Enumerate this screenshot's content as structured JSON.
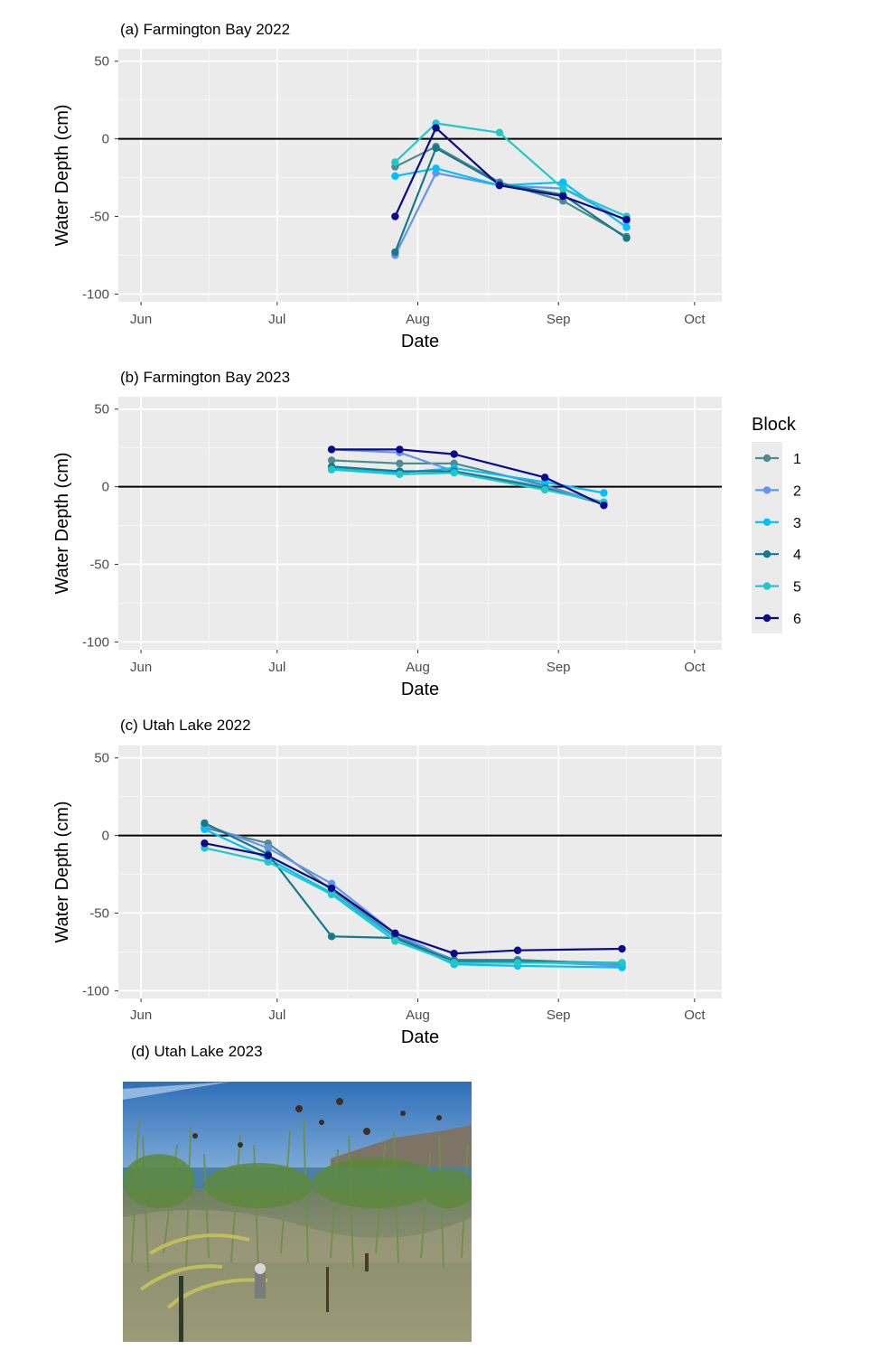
{
  "figure": {
    "legend": {
      "title": "Block",
      "entries": [
        {
          "label": "1",
          "color": "#4f8c8f"
        },
        {
          "label": "2",
          "color": "#6495ed"
        },
        {
          "label": "3",
          "color": "#00bfff"
        },
        {
          "label": "4",
          "color": "#17798c"
        },
        {
          "label": "5",
          "color": "#20c9c9"
        },
        {
          "label": "6",
          "color": "#0a0a8c"
        }
      ]
    },
    "photo_panel": {
      "title": "(d)  Utah Lake 2023",
      "image_alt": "photo-of-reeds-in-shallow-lake-water"
    }
  },
  "chart_data": [
    {
      "type": "line",
      "panel": "a",
      "title": "(a) Farmington Bay 2022",
      "xlabel": "Date",
      "ylabel": "Water Depth (cm)",
      "x_ticks": [
        "2022-06-01",
        "2022-07-01",
        "2022-08-01",
        "2022-09-01",
        "2022-10-01"
      ],
      "x_tick_labels": [
        "Jun",
        "Jul",
        "Aug",
        "Sep",
        "Oct"
      ],
      "xlim": [
        "2022-05-27",
        "2022-10-07"
      ],
      "ylim": [
        -105,
        58
      ],
      "y_ticks": [
        50,
        0,
        -50,
        -100
      ],
      "y_tick_labels": [
        "50",
        "0",
        "-50",
        "-100"
      ],
      "reference_line_y": 0,
      "grid": true,
      "series": [
        {
          "name": "1",
          "x": [
            "2022-07-27",
            "2022-08-05",
            "2022-08-19",
            "2022-09-02",
            "2022-09-16"
          ],
          "values": [
            -18,
            -5,
            -28,
            -40,
            -63
          ]
        },
        {
          "name": "2",
          "x": [
            "2022-07-27",
            "2022-08-05",
            "2022-08-19",
            "2022-09-02",
            "2022-09-16"
          ],
          "values": [
            -75,
            -22,
            -30,
            -32,
            -53
          ]
        },
        {
          "name": "3",
          "x": [
            "2022-07-27",
            "2022-08-05",
            "2022-08-19",
            "2022-09-02",
            "2022-09-16"
          ],
          "values": [
            -24,
            -19,
            -30,
            -28,
            -57
          ]
        },
        {
          "name": "4",
          "x": [
            "2022-07-27",
            "2022-08-05",
            "2022-08-19",
            "2022-09-02",
            "2022-09-16"
          ],
          "values": [
            -73,
            -6,
            -29,
            -36,
            -64
          ]
        },
        {
          "name": "5",
          "x": [
            "2022-07-27",
            "2022-08-05",
            "2022-08-19",
            "2022-09-02",
            "2022-09-16"
          ],
          "values": [
            -15,
            10,
            4,
            -32,
            -50
          ]
        },
        {
          "name": "6",
          "x": [
            "2022-07-27",
            "2022-08-05",
            "2022-08-19",
            "2022-09-02",
            "2022-09-16"
          ],
          "values": [
            -50,
            7,
            -30,
            -37,
            -52
          ]
        }
      ]
    },
    {
      "type": "line",
      "panel": "b",
      "title": "(b) Farmington Bay 2023",
      "xlabel": "Date",
      "ylabel": "Water Depth (cm)",
      "x_ticks": [
        "2023-06-01",
        "2023-07-01",
        "2023-08-01",
        "2023-09-01",
        "2023-10-01"
      ],
      "x_tick_labels": [
        "Jun",
        "Jul",
        "Aug",
        "Sep",
        "Oct"
      ],
      "xlim": [
        "2023-05-27",
        "2023-10-07"
      ],
      "ylim": [
        -105,
        58
      ],
      "y_ticks": [
        50,
        0,
        -50,
        -100
      ],
      "y_tick_labels": [
        "50",
        "0",
        "-50",
        "-100"
      ],
      "reference_line_y": 0,
      "grid": true,
      "series": [
        {
          "name": "1",
          "x": [
            "2023-07-13",
            "2023-07-28",
            "2023-08-09",
            "2023-08-29",
            "2023-09-11"
          ],
          "values": [
            17,
            15,
            15,
            1,
            -11
          ]
        },
        {
          "name": "2",
          "x": [
            "2023-07-13",
            "2023-07-28",
            "2023-08-09",
            "2023-08-29",
            "2023-09-11"
          ],
          "values": [
            24,
            22,
            10,
            0,
            -10
          ]
        },
        {
          "name": "3",
          "x": [
            "2023-07-13",
            "2023-07-28",
            "2023-08-09",
            "2023-08-29",
            "2023-09-11"
          ],
          "values": [
            12,
            9,
            12,
            3,
            -4
          ]
        },
        {
          "name": "4",
          "x": [
            "2023-07-13",
            "2023-07-28",
            "2023-08-09",
            "2023-08-29",
            "2023-09-11"
          ],
          "values": [
            13,
            10,
            10,
            -1,
            -11
          ]
        },
        {
          "name": "5",
          "x": [
            "2023-07-13",
            "2023-07-28",
            "2023-08-09",
            "2023-08-29",
            "2023-09-11"
          ],
          "values": [
            11,
            8,
            9,
            -2,
            -10
          ]
        },
        {
          "name": "6",
          "x": [
            "2023-07-13",
            "2023-07-28",
            "2023-08-09",
            "2023-08-29",
            "2023-09-11"
          ],
          "values": [
            24,
            24,
            21,
            6,
            -12
          ]
        }
      ]
    },
    {
      "type": "line",
      "panel": "c",
      "title": "(c) Utah Lake 2022",
      "xlabel": "Date",
      "ylabel": "Water Depth (cm)",
      "x_ticks": [
        "2022-06-01",
        "2022-07-01",
        "2022-08-01",
        "2022-09-01",
        "2022-10-01"
      ],
      "x_tick_labels": [
        "Jun",
        "Jul",
        "Aug",
        "Sep",
        "Oct"
      ],
      "xlim": [
        "2022-05-27",
        "2022-10-07"
      ],
      "ylim": [
        -105,
        58
      ],
      "y_ticks": [
        50,
        0,
        -50,
        -100
      ],
      "y_tick_labels": [
        "50",
        "0",
        "-50",
        "-100"
      ],
      "reference_line_y": 0,
      "grid": true,
      "series": [
        {
          "name": "1",
          "x": [
            "2022-06-15",
            "2022-06-29",
            "2022-07-13",
            "2022-07-27",
            "2022-08-09",
            "2022-08-23",
            "2022-09-15"
          ],
          "values": [
            5,
            -5,
            -35,
            -65,
            -80,
            -80,
            -83
          ]
        },
        {
          "name": "2",
          "x": [
            "2022-06-15",
            "2022-06-29",
            "2022-07-13",
            "2022-07-27",
            "2022-08-09",
            "2022-08-23",
            "2022-09-15"
          ],
          "values": [
            7,
            -8,
            -31,
            -63,
            -81,
            -81,
            -84
          ]
        },
        {
          "name": "3",
          "x": [
            "2022-06-15",
            "2022-06-29",
            "2022-07-13",
            "2022-07-27",
            "2022-08-09",
            "2022-08-23",
            "2022-09-15"
          ],
          "values": [
            4,
            -15,
            -37,
            -66,
            -83,
            -84,
            -85
          ]
        },
        {
          "name": "4",
          "x": [
            "2022-06-15",
            "2022-06-29",
            "2022-07-13",
            "2022-07-27",
            "2022-08-09",
            "2022-08-23",
            "2022-09-15"
          ],
          "values": [
            8,
            -12,
            -65,
            -66,
            -81,
            -81,
            -82
          ]
        },
        {
          "name": "5",
          "x": [
            "2022-06-15",
            "2022-06-29",
            "2022-07-13",
            "2022-07-27",
            "2022-08-09",
            "2022-08-23",
            "2022-09-15"
          ],
          "values": [
            -8,
            -17,
            -38,
            -68,
            -82,
            -82,
            -82
          ]
        },
        {
          "name": "6",
          "x": [
            "2022-06-15",
            "2022-06-29",
            "2022-07-13",
            "2022-07-27",
            "2022-08-09",
            "2022-08-23",
            "2022-09-15"
          ],
          "values": [
            -5,
            -13,
            -34,
            -63,
            -76,
            -74,
            -73
          ]
        }
      ]
    }
  ]
}
